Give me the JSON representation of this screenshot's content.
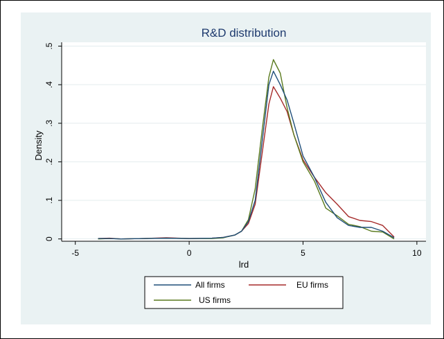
{
  "chart_data": {
    "type": "line",
    "title": "R&D distribution",
    "xlabel": "lrd",
    "ylabel": "Density",
    "xlim": [
      -5.6,
      10.4
    ],
    "ylim": [
      -0.006,
      0.51
    ],
    "xticks": [
      -5,
      0,
      5,
      10
    ],
    "xtick_labels": [
      "-5",
      "0",
      "5",
      "10"
    ],
    "yticks": [
      0,
      0.1,
      0.2,
      0.3,
      0.4,
      0.5
    ],
    "ytick_labels": [
      "0",
      ".1",
      ".2",
      ".3",
      ".4",
      ".5"
    ],
    "grid": "horizontal",
    "legend_position": "bottom",
    "colors": {
      "panel": "#eaf2f3",
      "plot": "#ffffff",
      "title": "#1e3a6e",
      "All firms": "#1f4e79",
      "EU firms": "#a52a2a",
      "US firms": "#5a7a1e"
    },
    "series": [
      {
        "name": "All firms",
        "x": [
          -4.0,
          -3.5,
          -3.0,
          -2.0,
          -1.0,
          0.0,
          1.0,
          1.5,
          2.0,
          2.3,
          2.6,
          2.9,
          3.2,
          3.5,
          3.7,
          4.0,
          4.3,
          4.6,
          5.0,
          5.5,
          6.0,
          6.5,
          7.0,
          7.5,
          8.0,
          8.5,
          9.0
        ],
        "y": [
          0.001,
          0.001,
          0.0,
          0.001,
          0.002,
          0.001,
          0.002,
          0.004,
          0.01,
          0.02,
          0.045,
          0.1,
          0.25,
          0.4,
          0.435,
          0.4,
          0.36,
          0.3,
          0.215,
          0.16,
          0.095,
          0.055,
          0.035,
          0.03,
          0.03,
          0.02,
          0.003
        ]
      },
      {
        "name": "EU firms",
        "x": [
          -4.0,
          -3.5,
          -3.0,
          -2.0,
          -1.0,
          0.0,
          1.0,
          1.5,
          2.0,
          2.3,
          2.6,
          2.9,
          3.2,
          3.5,
          3.7,
          4.0,
          4.3,
          4.6,
          5.0,
          5.5,
          6.0,
          6.5,
          7.0,
          7.5,
          8.0,
          8.5,
          9.0
        ],
        "y": [
          0.001,
          0.002,
          0.0,
          0.001,
          0.003,
          0.001,
          0.002,
          0.004,
          0.01,
          0.02,
          0.04,
          0.09,
          0.22,
          0.35,
          0.395,
          0.365,
          0.33,
          0.27,
          0.205,
          0.16,
          0.12,
          0.09,
          0.058,
          0.048,
          0.045,
          0.035,
          0.005
        ]
      },
      {
        "name": "US firms",
        "x": [
          -4.0,
          -3.5,
          -3.0,
          -2.0,
          -1.0,
          0.0,
          1.0,
          1.5,
          2.0,
          2.3,
          2.6,
          2.9,
          3.2,
          3.5,
          3.7,
          4.0,
          4.3,
          4.6,
          5.0,
          5.5,
          6.0,
          6.5,
          7.0,
          7.5,
          8.0,
          8.5,
          9.0
        ],
        "y": [
          0.0,
          0.001,
          0.0,
          0.001,
          0.002,
          0.001,
          0.001,
          0.003,
          0.01,
          0.02,
          0.05,
          0.13,
          0.28,
          0.42,
          0.465,
          0.43,
          0.34,
          0.27,
          0.2,
          0.15,
          0.08,
          0.06,
          0.038,
          0.032,
          0.02,
          0.018,
          0.0
        ]
      }
    ]
  }
}
